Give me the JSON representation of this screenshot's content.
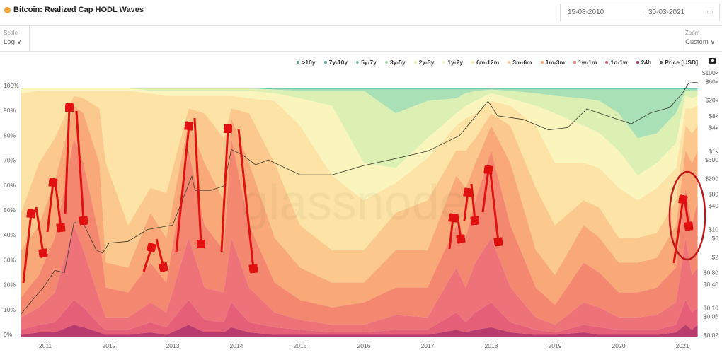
{
  "header": {
    "title": "Bitcoin: Realized Cap HODL Waves",
    "date_from": "15-08-2010",
    "date_to": "30-03-2021",
    "arrow": "→"
  },
  "toolbar": {
    "scale_label": "Scale",
    "scale_value": "Log ∨",
    "zoom_label": "Zoom",
    "zoom_value": "Custom ∨"
  },
  "watermark": "glassnode",
  "legend": [
    {
      "label": ">10y",
      "color": "#4e8f86"
    },
    {
      "label": "7y-10y",
      "color": "#5fae95"
    },
    {
      "label": "5y-7y",
      "color": "#78c8a6"
    },
    {
      "label": "3y-5y",
      "color": "#a6dfb5"
    },
    {
      "label": "2y-3y",
      "color": "#d9efb2"
    },
    {
      "label": "1y-2y",
      "color": "#f7f3bd"
    },
    {
      "label": "6m-12m",
      "color": "#fde3a2"
    },
    {
      "label": "3m-6m",
      "color": "#fbc68c"
    },
    {
      "label": "1m-3m",
      "color": "#f8a676"
    },
    {
      "label": "1w-1m",
      "color": "#f3836e"
    },
    {
      "label": "1d-1w",
      "color": "#e45f77"
    },
    {
      "label": "24h",
      "color": "#b93a6c"
    },
    {
      "label": "Price [USD]",
      "color": "#555555"
    }
  ],
  "chart_data": {
    "type": "area",
    "title": "Bitcoin: Realized Cap HODL Waves",
    "stacking": "percent, youngest band at bottom",
    "series_order": [
      "24h",
      "1d-1w",
      "1w-1m",
      "1m-3m",
      "3m-6m",
      "6m-12m",
      "1y-2y",
      "2y-3y",
      "3y-5y",
      "5y-7y",
      "7y-10y",
      ">10y"
    ],
    "band_colors": [
      "#b93a6c",
      "#e45f77",
      "#ee7379",
      "#f4876f",
      "#f9a978",
      "#fbc98d",
      "#fde3a6",
      "#faf4bd",
      "#ddf0b4",
      "#a9e0b6",
      "#7fcdb0",
      "#5db5a5"
    ],
    "x": [
      2010.62,
      2010.9,
      2011.15,
      2011.45,
      2011.6,
      2011.85,
      2011.95,
      2012.3,
      2012.65,
      2012.9,
      2013.25,
      2013.5,
      2013.8,
      2013.92,
      2014.2,
      2014.6,
      2015.0,
      2015.5,
      2016.0,
      2016.5,
      2017.0,
      2017.45,
      2017.6,
      2017.75,
      2018.0,
      2018.3,
      2018.7,
      2019.0,
      2019.45,
      2019.7,
      2020.0,
      2020.3,
      2020.6,
      2020.9,
      2021.05,
      2021.15,
      2021.24
    ],
    "cumulative_pct": [
      [
        1,
        3,
        8,
        16,
        35,
        50,
        98,
        100,
        100
      ],
      [
        2,
        5,
        12,
        25,
        45,
        70,
        99,
        100,
        100
      ],
      [
        2,
        6,
        18,
        40,
        63,
        80,
        99,
        100,
        100
      ],
      [
        5,
        15,
        45,
        80,
        93,
        97,
        99,
        100,
        100
      ],
      [
        4,
        12,
        35,
        70,
        90,
        96,
        99,
        100,
        100
      ],
      [
        2,
        5,
        15,
        40,
        70,
        92,
        99,
        100,
        100
      ],
      [
        1,
        3,
        8,
        20,
        30,
        70,
        99,
        100,
        100
      ],
      [
        1,
        3,
        8,
        18,
        28,
        45,
        99,
        100,
        100
      ],
      [
        2,
        6,
        14,
        30,
        50,
        60,
        98,
        99,
        100
      ],
      [
        1,
        4,
        10,
        22,
        40,
        58,
        97,
        99,
        100
      ],
      [
        5,
        15,
        40,
        75,
        87,
        92,
        97,
        99,
        100
      ],
      [
        2,
        7,
        20,
        45,
        70,
        90,
        97,
        99,
        100
      ],
      [
        2,
        6,
        18,
        35,
        55,
        80,
        97,
        99,
        100
      ],
      [
        4,
        14,
        40,
        80,
        88,
        92,
        97,
        99,
        100
      ],
      [
        2,
        6,
        20,
        45,
        70,
        90,
        96,
        99,
        100
      ],
      [
        1,
        4,
        10,
        22,
        40,
        70,
        95,
        98,
        99.5
      ],
      [
        1,
        3,
        7,
        15,
        28,
        45,
        85,
        96,
        99
      ],
      [
        1,
        2,
        5,
        12,
        22,
        35,
        65,
        93,
        99
      ],
      [
        1,
        2,
        5,
        14,
        22,
        35,
        55,
        70,
        99
      ],
      [
        1,
        3,
        9,
        20,
        35,
        50,
        62,
        68,
        90
      ],
      [
        1,
        3,
        8,
        20,
        35,
        55,
        72,
        80,
        95
      ],
      [
        3,
        10,
        28,
        45,
        65,
        75,
        85,
        90,
        96
      ],
      [
        2,
        6,
        20,
        40,
        60,
        75,
        88,
        93,
        98
      ],
      [
        3,
        10,
        30,
        55,
        70,
        80,
        90,
        95,
        99
      ],
      [
        4,
        14,
        40,
        75,
        85,
        90,
        95,
        98,
        99.5
      ],
      [
        2,
        6,
        20,
        45,
        70,
        85,
        93,
        96,
        99
      ],
      [
        1,
        3,
        8,
        20,
        35,
        60,
        85,
        93,
        98
      ],
      [
        1,
        2,
        5,
        13,
        25,
        45,
        70,
        90,
        97
      ],
      [
        2,
        5,
        14,
        30,
        45,
        55,
        70,
        85,
        96
      ],
      [
        1,
        4,
        12,
        26,
        40,
        52,
        68,
        82,
        95
      ],
      [
        1,
        3,
        8,
        18,
        30,
        40,
        60,
        75,
        90
      ],
      [
        1,
        3,
        8,
        18,
        30,
        40,
        55,
        65,
        80
      ],
      [
        1,
        3,
        9,
        20,
        32,
        42,
        60,
        70,
        82
      ],
      [
        2,
        5,
        14,
        28,
        45,
        55,
        68,
        78,
        90
      ],
      [
        5,
        15,
        40,
        60,
        75,
        85,
        92,
        97,
        99
      ],
      [
        3,
        10,
        25,
        45,
        70,
        82,
        92,
        96,
        99
      ],
      [
        5,
        12,
        28,
        55,
        75,
        85,
        93,
        97,
        99
      ]
    ],
    "price": {
      "name": "Price [USD]",
      "x": [
        2010.62,
        2010.85,
        2010.95,
        2011.15,
        2011.3,
        2011.45,
        2011.6,
        2011.8,
        2011.9,
        2012.0,
        2012.3,
        2012.6,
        2013.0,
        2013.3,
        2013.35,
        2013.6,
        2013.8,
        2013.92,
        2014.1,
        2014.3,
        2014.5,
        2015.0,
        2015.5,
        2016.0,
        2016.5,
        2017.0,
        2017.5,
        2017.95,
        2018.1,
        2018.5,
        2018.9,
        2019.2,
        2019.5,
        2019.9,
        2020.2,
        2020.5,
        2020.8,
        2021.0,
        2021.1,
        2021.24
      ],
      "y": [
        0.07,
        0.2,
        0.3,
        0.9,
        0.8,
        15,
        14,
        3,
        2.5,
        4.5,
        5,
        10,
        13,
        230,
        100,
        100,
        130,
        1100,
        800,
        450,
        600,
        250,
        250,
        430,
        650,
        1000,
        2500,
        19000,
        8000,
        6500,
        3500,
        4000,
        12000,
        7200,
        5000,
        9500,
        13000,
        30000,
        55000,
        58000
      ]
    },
    "left_axis": {
      "ticks": [
        "0%",
        "10%",
        "20%",
        "30%",
        "40%",
        "50%",
        "60%",
        "70%",
        "80%",
        "90%",
        "100%"
      ],
      "range": [
        0,
        100
      ]
    },
    "right_axis": {
      "scale": "log",
      "range": [
        0.02,
        100000
      ],
      "ticks": [
        {
          "v": 100000,
          "label": "$100k"
        },
        {
          "v": 60000,
          "label": "$60k"
        },
        {
          "v": 20000,
          "label": "$20k"
        },
        {
          "v": 8000,
          "label": "$8k"
        },
        {
          "v": 4000,
          "label": "$4k"
        },
        {
          "v": 1000,
          "label": "$1k"
        },
        {
          "v": 600,
          "label": "$600"
        },
        {
          "v": 200,
          "label": "$200"
        },
        {
          "v": 80,
          "label": "$80"
        },
        {
          "v": 40,
          "label": "$40"
        },
        {
          "v": 10,
          "label": "$10"
        },
        {
          "v": 6,
          "label": "$6"
        },
        {
          "v": 2,
          "label": "$2"
        },
        {
          "v": 0.8,
          "label": "$0.80"
        },
        {
          "v": 0.4,
          "label": "$0.40"
        },
        {
          "v": 0.1,
          "label": "$0.10"
        },
        {
          "v": 0.06,
          "label": "$0.06"
        },
        {
          "v": 0.02,
          "label": "$0.02"
        }
      ]
    },
    "x_axis": {
      "ticks": [
        "2011",
        "2012",
        "2013",
        "2014",
        "2015",
        "2016",
        "2017",
        "2018",
        "2019",
        "2020",
        "2021"
      ]
    }
  }
}
